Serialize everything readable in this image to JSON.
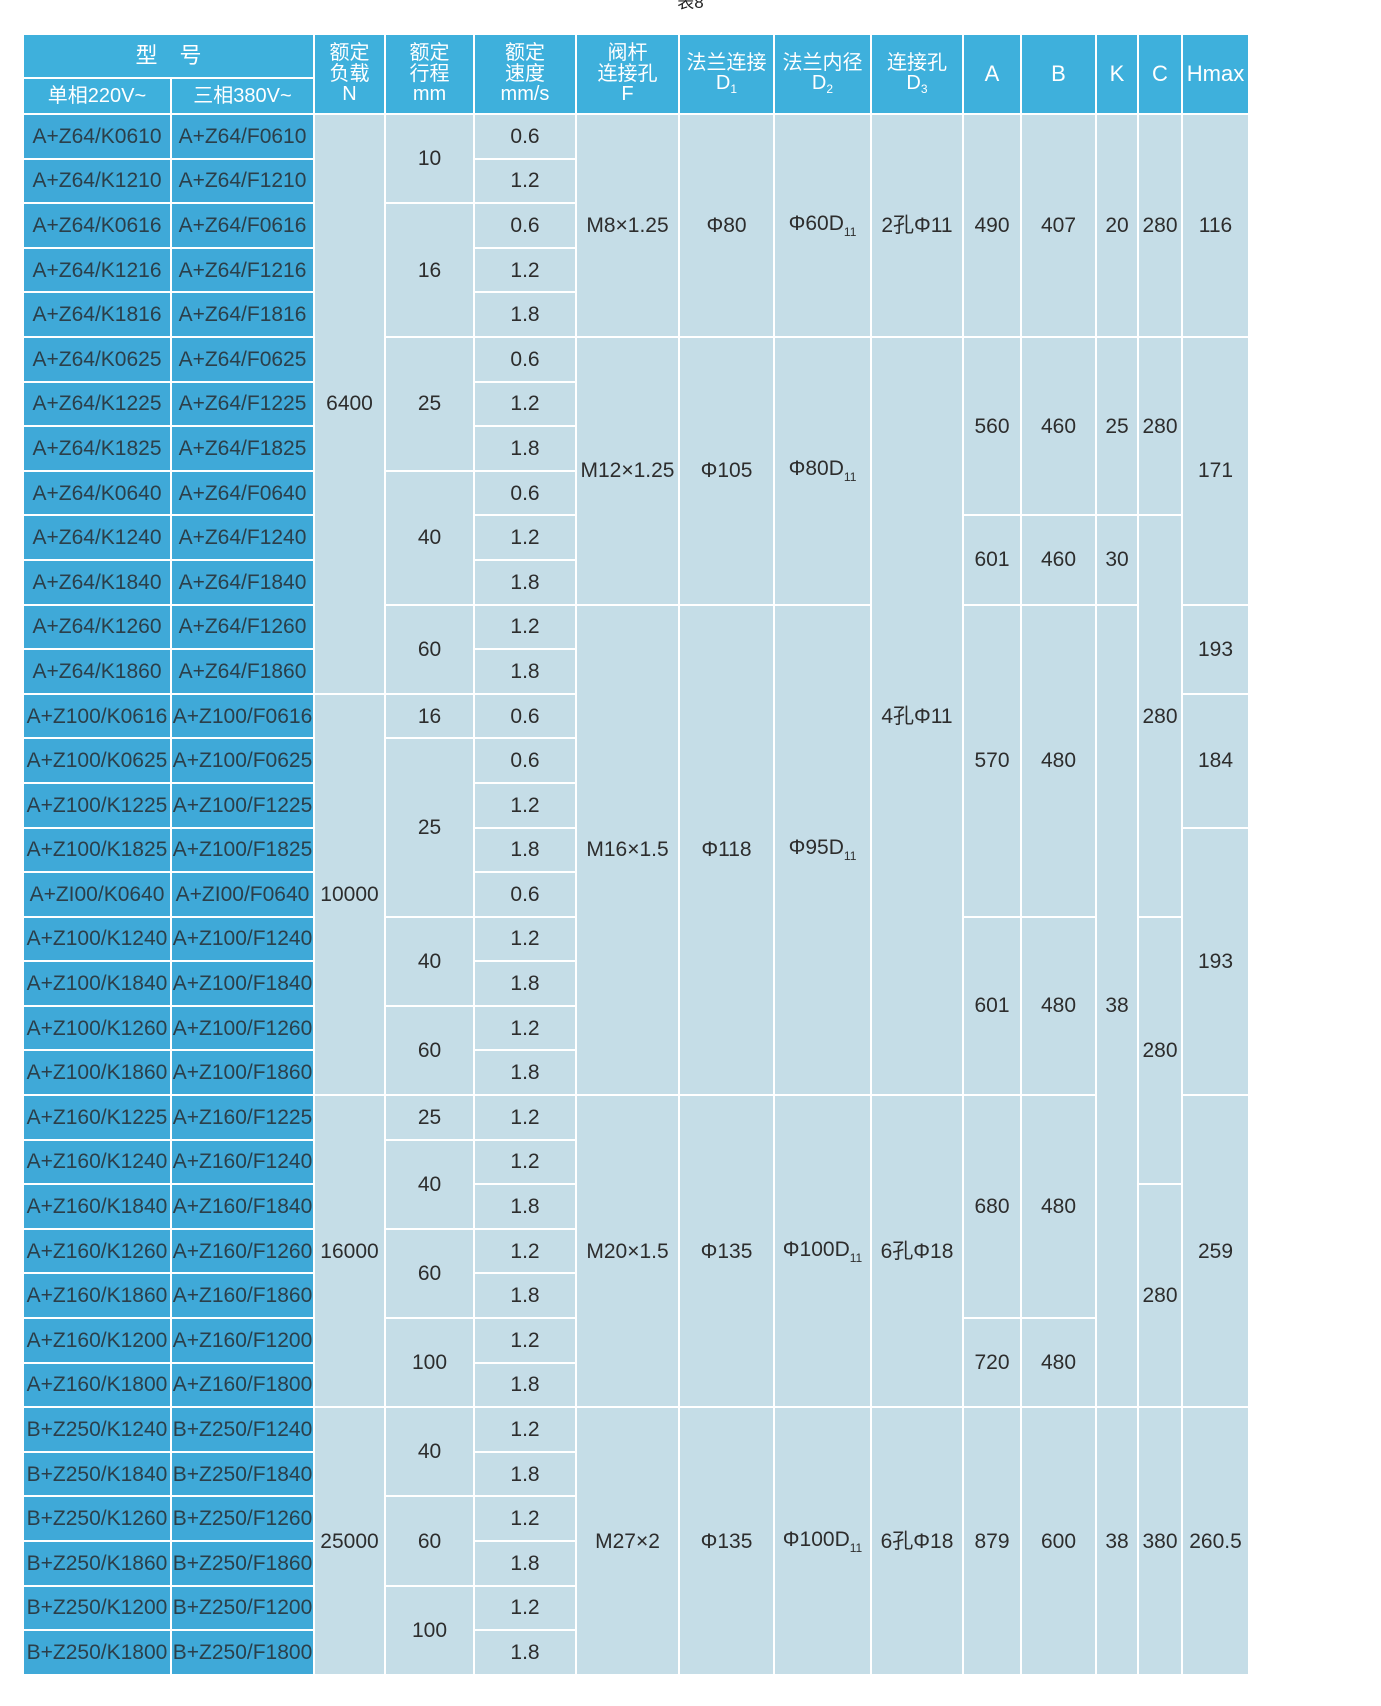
{
  "caption": "表8",
  "header": {
    "model": "型　号",
    "single_phase": "单相220V~",
    "three_phase": "三相380V~",
    "load": [
      "额定",
      "负载",
      "N"
    ],
    "stroke": [
      "额定",
      "行程",
      "mm"
    ],
    "speed": [
      "额定",
      "速度",
      "mm/s"
    ],
    "stem": [
      "阀杆",
      "连接孔",
      "F"
    ],
    "flange": [
      "法兰连接",
      "D",
      "1"
    ],
    "flange_inner": [
      "法兰内径",
      "D",
      "2"
    ],
    "hole": [
      "连接孔",
      "D",
      "3"
    ],
    "a": "A",
    "b": "B",
    "k": "K",
    "c": "C",
    "hmax": "Hmax"
  },
  "rows": [
    {
      "s": "A+Z64/K0610",
      "t": "A+Z64/F0610",
      "v": "0.6"
    },
    {
      "s": "A+Z64/K1210",
      "t": "A+Z64/F1210",
      "v": "1.2"
    },
    {
      "s": "A+Z64/K0616",
      "t": "A+Z64/F0616",
      "v": "0.6"
    },
    {
      "s": "A+Z64/K1216",
      "t": "A+Z64/F1216",
      "v": "1.2"
    },
    {
      "s": "A+Z64/K1816",
      "t": "A+Z64/F1816",
      "v": "1.8"
    },
    {
      "s": "A+Z64/K0625",
      "t": "A+Z64/F0625",
      "v": "0.6"
    },
    {
      "s": "A+Z64/K1225",
      "t": "A+Z64/F1225",
      "v": "1.2"
    },
    {
      "s": "A+Z64/K1825",
      "t": "A+Z64/F1825",
      "v": "1.8"
    },
    {
      "s": "A+Z64/K0640",
      "t": "A+Z64/F0640",
      "v": "0.6"
    },
    {
      "s": "A+Z64/K1240",
      "t": "A+Z64/F1240",
      "v": "1.2"
    },
    {
      "s": "A+Z64/K1840",
      "t": "A+Z64/F1840",
      "v": "1.8"
    },
    {
      "s": "A+Z64/K1260",
      "t": "A+Z64/F1260",
      "v": "1.2"
    },
    {
      "s": "A+Z64/K1860",
      "t": "A+Z64/F1860",
      "v": "1.8"
    },
    {
      "s": "A+Z100/K0616",
      "t": "A+Z100/F0616",
      "v": "0.6"
    },
    {
      "s": "A+Z100/K0625",
      "t": "A+Z100/F0625",
      "v": "0.6"
    },
    {
      "s": "A+Z100/K1225",
      "t": "A+Z100/F1225",
      "v": "1.2"
    },
    {
      "s": "A+Z100/K1825",
      "t": "A+Z100/F1825",
      "v": "1.8"
    },
    {
      "s": "A+ZI00/K0640",
      "t": "A+ZI00/F0640",
      "v": "0.6"
    },
    {
      "s": "A+Z100/K1240",
      "t": "A+Z100/F1240",
      "v": "1.2"
    },
    {
      "s": "A+Z100/K1840",
      "t": "A+Z100/F1840",
      "v": "1.8"
    },
    {
      "s": "A+Z100/K1260",
      "t": "A+Z100/F1260",
      "v": "1.2"
    },
    {
      "s": "A+Z100/K1860",
      "t": "A+Z100/F1860",
      "v": "1.8"
    },
    {
      "s": "A+Z160/K1225",
      "t": "A+Z160/F1225",
      "v": "1.2"
    },
    {
      "s": "A+Z160/K1240",
      "t": "A+Z160/F1240",
      "v": "1.2"
    },
    {
      "s": "A+Z160/K1840",
      "t": "A+Z160/F1840",
      "v": "1.8"
    },
    {
      "s": "A+Z160/K1260",
      "t": "A+Z160/F1260",
      "v": "1.2"
    },
    {
      "s": "A+Z160/K1860",
      "t": "A+Z160/F1860",
      "v": "1.8"
    },
    {
      "s": "A+Z160/K1200",
      "t": "A+Z160/F1200",
      "v": "1.2"
    },
    {
      "s": "A+Z160/K1800",
      "t": "A+Z160/F1800",
      "v": "1.8"
    },
    {
      "s": "B+Z250/K1240",
      "t": "B+Z250/F1240",
      "v": "1.2"
    },
    {
      "s": "B+Z250/K1840",
      "t": "B+Z250/F1840",
      "v": "1.8"
    },
    {
      "s": "B+Z250/K1260",
      "t": "B+Z250/F1260",
      "v": "1.2"
    },
    {
      "s": "B+Z250/K1860",
      "t": "B+Z250/F1860",
      "v": "1.8"
    },
    {
      "s": "B+Z250/K1200",
      "t": "B+Z250/F1200",
      "v": "1.2"
    },
    {
      "s": "B+Z250/K1800",
      "t": "B+Z250/F1800",
      "v": "1.8"
    }
  ],
  "load": [
    "6400",
    "10000",
    "16000",
    "25000"
  ],
  "stroke": [
    "10",
    "16",
    "25",
    "40",
    "60",
    "16",
    "25",
    "40",
    "60",
    "25",
    "40",
    "60",
    "100",
    "40",
    "60",
    "100"
  ],
  "stem": [
    "M8×1.25",
    "M12×1.25",
    "M16×1.5",
    "M20×1.5",
    "M27×2"
  ],
  "flange": [
    "Φ80",
    "Φ105",
    "Φ118",
    "Φ135",
    "Φ135"
  ],
  "flange_inner": [
    {
      "main": "Φ60D",
      "sub": "11"
    },
    {
      "main": "Φ80D",
      "sub": "11"
    },
    {
      "main": "Φ95D",
      "sub": "11"
    },
    {
      "main": "Φ100D",
      "sub": "11"
    },
    {
      "main": "Φ100D",
      "sub": "11"
    }
  ],
  "hole": [
    "2孔Φ11",
    "4孔Φ11",
    "6孔Φ18",
    "6孔Φ18"
  ],
  "a": [
    "490",
    "560",
    "601",
    "570",
    "601",
    "680",
    "720",
    "879"
  ],
  "b": [
    "407",
    "460",
    "460",
    "480",
    "480",
    "480",
    "480",
    "600"
  ],
  "k": [
    "20",
    "25",
    "30",
    "38",
    "38"
  ],
  "c": [
    "280",
    "280",
    "280",
    "280",
    "280",
    "380"
  ],
  "hmax": [
    "116",
    "171",
    "193",
    "184",
    "193",
    "259",
    "260.5"
  ]
}
